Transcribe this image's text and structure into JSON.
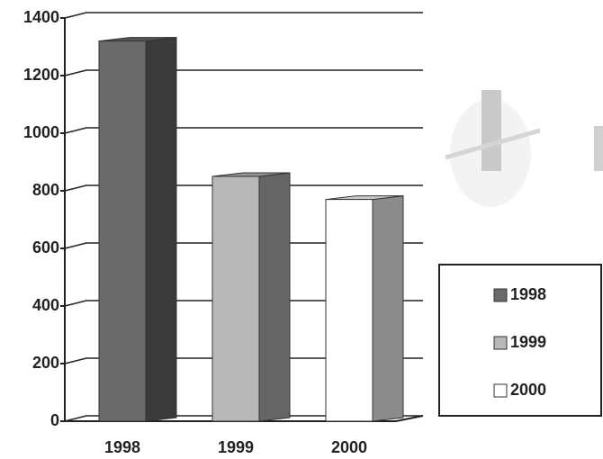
{
  "chart_data": {
    "type": "bar3d",
    "categories": [
      "1998",
      "1999",
      "2000"
    ],
    "values": [
      1320,
      850,
      770
    ],
    "colors": [
      "#6a6a6a",
      "#b8b8b8",
      "#ffffff"
    ],
    "ylim": [
      0,
      1400
    ],
    "yticks": [
      0,
      200,
      400,
      600,
      800,
      1000,
      1200,
      1400
    ],
    "grid": true,
    "legend": "right"
  }
}
